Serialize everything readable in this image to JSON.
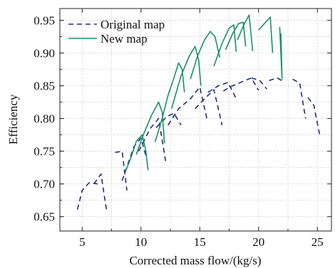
{
  "chart_data": {
    "type": "line",
    "xlabel": "Corrected mass flow/(kg/s)",
    "ylabel": "Efficiency",
    "xlim": [
      3.1,
      26.2
    ],
    "ylim": [
      0.628,
      0.968
    ],
    "xticks": [
      5,
      10,
      15,
      20,
      25
    ],
    "yticks": [
      0.65,
      0.7,
      0.75,
      0.8,
      0.85,
      0.9,
      0.95
    ],
    "grid": true,
    "legend_position": "top-left",
    "series": [
      {
        "name": "Original map",
        "color": "#1f2f7a",
        "dash": "dashed",
        "segments": [
          [
            [
              4.6,
              0.661
            ],
            [
              5.0,
              0.69
            ],
            [
              5.6,
              0.702
            ],
            [
              6.3,
              0.7
            ]
          ],
          [
            [
              6.0,
              0.7
            ],
            [
              6.6,
              0.715
            ],
            [
              7.1,
              0.656
            ]
          ],
          [
            [
              7.8,
              0.748
            ],
            [
              8.4,
              0.75
            ],
            [
              8.8,
              0.69
            ]
          ],
          [
            [
              8.4,
              0.705
            ],
            [
              9.4,
              0.757
            ],
            [
              10.0,
              0.77
            ],
            [
              10.4,
              0.744
            ]
          ],
          [
            [
              9.8,
              0.75
            ],
            [
              10.8,
              0.785
            ],
            [
              11.5,
              0.8
            ],
            [
              12.1,
              0.735
            ]
          ],
          [
            [
              11.3,
              0.786
            ],
            [
              12.2,
              0.803
            ],
            [
              12.8,
              0.808
            ],
            [
              13.4,
              0.79
            ]
          ],
          [
            [
              12.3,
              0.79
            ],
            [
              13.2,
              0.815
            ],
            [
              14.2,
              0.83
            ],
            [
              15.0,
              0.848
            ],
            [
              15.6,
              0.8
            ]
          ],
          [
            [
              14.6,
              0.815
            ],
            [
              15.4,
              0.83
            ],
            [
              16.2,
              0.844
            ],
            [
              16.9,
              0.79
            ]
          ],
          [
            [
              15.7,
              0.84
            ],
            [
              16.6,
              0.85
            ],
            [
              17.4,
              0.855
            ],
            [
              18.1,
              0.83
            ]
          ],
          [
            [
              17.0,
              0.842
            ],
            [
              17.8,
              0.85
            ],
            [
              18.6,
              0.856
            ],
            [
              19.4,
              0.862
            ],
            [
              20.0,
              0.843
            ]
          ],
          [
            [
              19.4,
              0.862
            ],
            [
              20.1,
              0.858
            ],
            [
              20.7,
              0.845
            ]
          ],
          [
            [
              20.9,
              0.858
            ],
            [
              21.6,
              0.862
            ],
            [
              22.2,
              0.855
            ]
          ],
          [
            [
              22.9,
              0.86
            ],
            [
              23.5,
              0.854
            ],
            [
              24.0,
              0.8
            ]
          ],
          [
            [
              24.2,
              0.832
            ],
            [
              24.7,
              0.82
            ],
            [
              25.2,
              0.775
            ]
          ]
        ]
      },
      {
        "name": "New map",
        "color": "#1a8f6a",
        "dash": "solid",
        "segments": [
          [
            [
              8.7,
              0.72
            ],
            [
              9.1,
              0.738
            ],
            [
              9.6,
              0.765
            ],
            [
              10.1,
              0.775
            ],
            [
              10.4,
              0.752
            ],
            [
              10.6,
              0.721
            ]
          ],
          [
            [
              9.6,
              0.745
            ],
            [
              10.2,
              0.775
            ],
            [
              10.9,
              0.805
            ],
            [
              11.5,
              0.825
            ],
            [
              11.8,
              0.81
            ],
            [
              12.0,
              0.762
            ]
          ],
          [
            [
              11.2,
              0.764
            ],
            [
              11.8,
              0.8
            ],
            [
              12.3,
              0.835
            ],
            [
              12.8,
              0.862
            ],
            [
              13.2,
              0.885
            ],
            [
              13.5,
              0.875
            ],
            [
              13.7,
              0.84
            ]
          ],
          [
            [
              12.6,
              0.815
            ],
            [
              13.4,
              0.865
            ],
            [
              14.1,
              0.895
            ],
            [
              14.6,
              0.91
            ],
            [
              14.9,
              0.89
            ],
            [
              15.1,
              0.85
            ]
          ],
          [
            [
              14.2,
              0.86
            ],
            [
              14.8,
              0.895
            ],
            [
              15.4,
              0.92
            ],
            [
              15.9,
              0.933
            ],
            [
              16.3,
              0.925
            ],
            [
              16.7,
              0.893
            ]
          ],
          [
            [
              16.2,
              0.88
            ],
            [
              16.9,
              0.915
            ],
            [
              17.5,
              0.938
            ],
            [
              17.9,
              0.943
            ],
            [
              18.1,
              0.902
            ]
          ],
          [
            [
              17.2,
              0.905
            ],
            [
              17.8,
              0.93
            ],
            [
              18.3,
              0.945
            ],
            [
              18.7,
              0.947
            ],
            [
              18.9,
              0.91
            ]
          ],
          [
            [
              18.2,
              0.92
            ],
            [
              18.8,
              0.945
            ],
            [
              19.2,
              0.958
            ],
            [
              19.5,
              0.903
            ]
          ],
          [
            [
              20.0,
              0.935
            ],
            [
              20.6,
              0.947
            ],
            [
              21.0,
              0.955
            ],
            [
              21.2,
              0.9
            ]
          ],
          [
            [
              21.8,
              0.94
            ],
            [
              22.0,
              0.86
            ],
            [
              21.9,
              0.93
            ]
          ]
        ]
      }
    ]
  }
}
